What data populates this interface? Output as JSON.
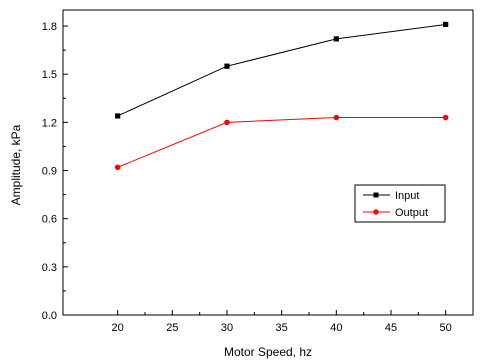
{
  "chart_data": {
    "type": "line",
    "title": "",
    "xlabel": "Motor Speed, hz",
    "ylabel": "Amplitude, kPa",
    "xlim": [
      15,
      52.5
    ],
    "ylim": [
      0.0,
      1.9
    ],
    "x_ticks": [
      "20",
      "25",
      "30",
      "35",
      "40",
      "45",
      "50"
    ],
    "y_ticks": [
      "0.0",
      "0.3",
      "0.6",
      "0.9",
      "1.2",
      "1.5",
      "1.8"
    ],
    "grid": false,
    "legend_position": "right-middle",
    "series": [
      {
        "name": "Input",
        "color": "#000000",
        "marker": "square",
        "x": [
          20,
          30,
          40,
          50
        ],
        "y": [
          1.24,
          1.55,
          1.72,
          1.81
        ]
      },
      {
        "name": "Output",
        "color": "#ff0000",
        "marker": "circle",
        "x": [
          20,
          30,
          40,
          50
        ],
        "y": [
          0.92,
          1.2,
          1.23,
          1.23
        ]
      }
    ]
  }
}
